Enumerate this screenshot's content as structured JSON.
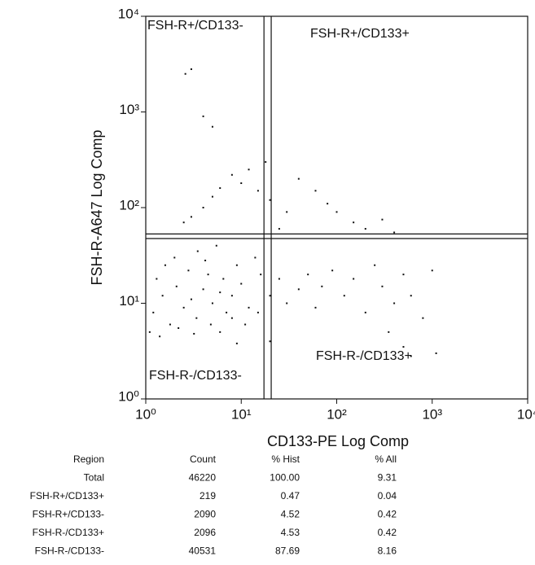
{
  "chart_data": {
    "type": "scatter",
    "xlabel": "CD133-PE Log Comp",
    "ylabel": "FSH-R-A647 Log Comp",
    "log_x": true,
    "log_y": true,
    "color": "#111111",
    "xlim": [
      1,
      10000
    ],
    "ylim": [
      1,
      10000
    ],
    "xticks": [
      {
        "value": 1,
        "label": "10⁰"
      },
      {
        "value": 10,
        "label": "10¹"
      },
      {
        "value": 100,
        "label": "10²"
      },
      {
        "value": 1000,
        "label": "10³"
      },
      {
        "value": 10000,
        "label": "10⁴"
      }
    ],
    "yticks": [
      {
        "value": 1,
        "label": "10⁰"
      },
      {
        "value": 10,
        "label": "10¹"
      },
      {
        "value": 100,
        "label": "10²"
      },
      {
        "value": 1000,
        "label": "10³"
      },
      {
        "value": 10000,
        "label": "10⁴"
      }
    ],
    "gates": {
      "x": [
        17.3,
        20.6
      ],
      "y": [
        47.5,
        53
      ]
    },
    "quadrant_labels": [
      "FSH-R+/CD133-",
      "FSH-R+/CD133+",
      "FSH-R-/CD133+",
      "FSH-R-/CD133-"
    ],
    "x": [
      1.2,
      1.5,
      1.8,
      2.1,
      2.5,
      3,
      3.4,
      4,
      4.5,
      5,
      6,
      7,
      1.3,
      1.6,
      2,
      2.8,
      3.5,
      4.2,
      5.5,
      6.5,
      8,
      9,
      10,
      12,
      14,
      16,
      1.1,
      1.4,
      2.2,
      3.2,
      4.8,
      6,
      8,
      11,
      15,
      20,
      25,
      30,
      40,
      50,
      60,
      70,
      90,
      120,
      150,
      200,
      250,
      300,
      400,
      500,
      600,
      1000,
      25,
      30,
      20,
      15,
      10,
      8,
      6,
      5,
      4,
      3,
      2.5,
      12,
      18,
      40,
      60,
      80,
      100,
      150,
      200,
      300,
      400,
      3,
      2.6,
      4,
      5,
      500,
      600,
      1100,
      800,
      350,
      9,
      20
    ],
    "y": [
      8,
      12,
      6,
      15,
      9,
      11,
      7,
      14,
      20,
      10,
      13,
      8,
      18,
      25,
      30,
      22,
      35,
      28,
      40,
      18,
      12,
      25,
      16,
      9,
      30,
      20,
      5,
      4.5,
      5.5,
      4.8,
      6,
      5,
      7,
      6,
      8,
      12,
      18,
      10,
      14,
      20,
      9,
      15,
      22,
      12,
      18,
      8,
      25,
      15,
      10,
      20,
      12,
      22,
      60,
      90,
      120,
      150,
      180,
      220,
      160,
      130,
      100,
      80,
      70,
      250,
      300,
      200,
      150,
      110,
      90,
      70,
      60,
      75,
      55,
      2800,
      2500,
      900,
      700,
      3.5,
      2.8,
      3,
      7,
      5,
      3.8,
      4
    ]
  },
  "table": {
    "columns": [
      "Region",
      "Count",
      "% Hist",
      "% All"
    ],
    "rows": [
      [
        "Total",
        "46220",
        "100.00",
        "9.31"
      ],
      [
        "FSH-R+/CD133+",
        "219",
        "0.47",
        "0.04"
      ],
      [
        "FSH-R+/CD133-",
        "2090",
        "4.52",
        "0.42"
      ],
      [
        "FSH-R-/CD133+",
        "2096",
        "4.53",
        "0.42"
      ],
      [
        "FSH-R-/CD133-",
        "40531",
        "87.69",
        "8.16"
      ]
    ]
  }
}
